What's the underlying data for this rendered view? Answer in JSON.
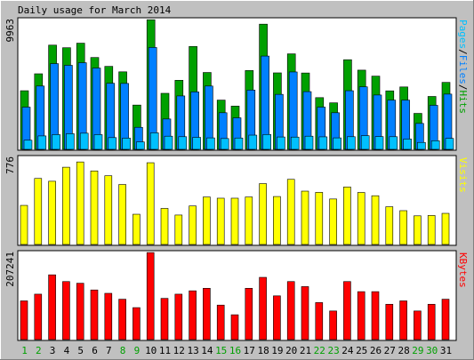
{
  "chart_data": {
    "title": "Daily usage for March 2014",
    "type": "bar",
    "days": [
      1,
      2,
      3,
      4,
      5,
      6,
      7,
      8,
      9,
      10,
      11,
      12,
      13,
      14,
      15,
      16,
      17,
      18,
      19,
      20,
      21,
      22,
      23,
      24,
      25,
      26,
      27,
      28,
      29,
      30,
      31
    ],
    "weekend_days": [
      1,
      2,
      8,
      9,
      15,
      16,
      22,
      23,
      29,
      30
    ],
    "colors": {
      "hits": "#00a000",
      "files": "#0080ff",
      "pages": "#00c0ff",
      "visits": "#ffff00",
      "kbytes": "#ff0000",
      "weekday_label": "#000000",
      "weekend_label": "#00a000",
      "background": "#c0c0c0",
      "panel": "#ffffff"
    },
    "panels": [
      {
        "id": "hits_files_pages",
        "y_max_label": "9963",
        "y_max": 9963,
        "side_label_parts": [
          {
            "text": "Pages",
            "color": "#00c0ff"
          },
          {
            "text": "/",
            "color": "#000000"
          },
          {
            "text": "Files",
            "color": "#0080ff"
          },
          {
            "text": "/",
            "color": "#000000"
          },
          {
            "text": "Hits",
            "color": "#00a000"
          }
        ],
        "series": [
          {
            "name": "Hits",
            "color": "#00a000",
            "values": [
              4500,
              5800,
              8000,
              7800,
              8150,
              7050,
              6370,
              5950,
              3400,
              9950,
              4300,
              5300,
              7900,
              5900,
              3780,
              3320,
              6050,
              9610,
              5870,
              7330,
              5860,
              3970,
              3570,
              6880,
              6080,
              5620,
              4490,
              4790,
              2760,
              4060,
              5140
            ]
          },
          {
            "name": "Files",
            "color": "#0080ff",
            "values": [
              3240,
              4860,
              6580,
              6450,
              6650,
              6240,
              5070,
              5060,
              1690,
              7820,
              2330,
              4100,
              4410,
              4860,
              2810,
              2420,
              4550,
              7160,
              4220,
              5940,
              4430,
              3240,
              2810,
              4500,
              4800,
              4170,
              3780,
              3780,
              1990,
              3380,
              4240
            ]
          },
          {
            "name": "Pages",
            "color": "#00c0ff",
            "values": [
              700,
              1030,
              1130,
              1200,
              1240,
              1130,
              900,
              860,
              570,
              1270,
              1010,
              970,
              920,
              880,
              830,
              870,
              1090,
              1140,
              950,
              940,
              1010,
              960,
              880,
              970,
              1050,
              980,
              970,
              790,
              530,
              660,
              840
            ]
          }
        ]
      },
      {
        "id": "visits",
        "y_max_label": "776",
        "y_max": 776,
        "side_label_parts": [
          {
            "text": "Visits",
            "color": "#ffff00"
          }
        ],
        "series": [
          {
            "name": "Visits",
            "color": "#ffff00",
            "values": [
              348,
              588,
              563,
              688,
              735,
              655,
              612,
              534,
              269,
              728,
              321,
              262,
              343,
              423,
              412,
              412,
              423,
              542,
              427,
              580,
              475,
              464,
              405,
              512,
              463,
              434,
              336,
              301,
              255,
              258,
              277
            ]
          }
        ]
      },
      {
        "id": "kbytes",
        "y_max_label": "207241",
        "y_max": 207241,
        "side_label_parts": [
          {
            "text": "KBytes",
            "color": "#ff0000"
          }
        ],
        "series": [
          {
            "name": "KBytes",
            "color": "#ff0000",
            "values": [
              92000,
              108000,
              154000,
              138000,
              134000,
              118000,
              110000,
              96000,
              76000,
              207000,
              98000,
              108000,
              116000,
              122000,
              82000,
              59000,
              122000,
              148000,
              104000,
              138000,
              126000,
              88000,
              68000,
              138000,
              114000,
              114000,
              84000,
              92000,
              68000,
              84000,
              96000
            ]
          }
        ]
      }
    ]
  }
}
